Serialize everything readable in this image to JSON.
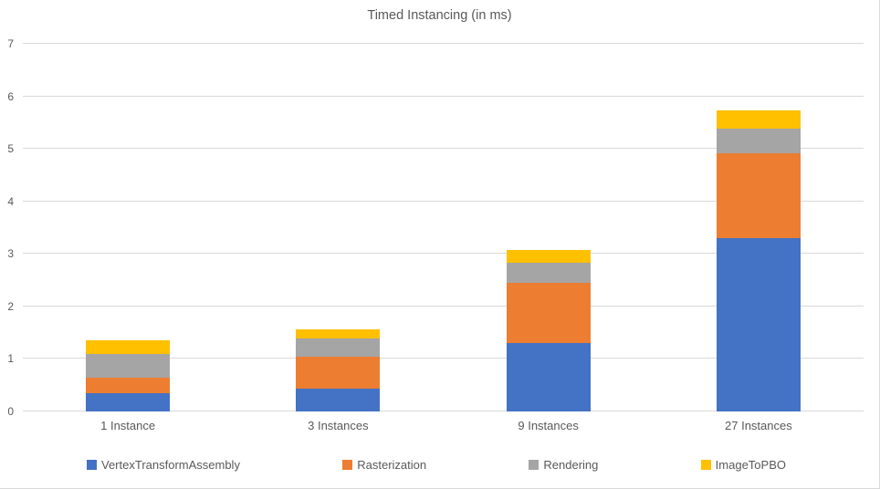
{
  "chart_data": {
    "type": "bar",
    "stacked": true,
    "title": "Timed Instancing (in ms)",
    "categories": [
      "1 Instance",
      "3 Instances",
      "9 Instances",
      "27 Instances"
    ],
    "series": [
      {
        "name": "VertexTransformAssembly",
        "color": "#4472C4",
        "values": [
          0.34,
          0.43,
          1.31,
          3.3
        ]
      },
      {
        "name": "Rasterization",
        "color": "#ED7D31",
        "values": [
          0.3,
          0.61,
          1.14,
          1.62
        ]
      },
      {
        "name": "Rendering",
        "color": "#A5A5A5",
        "values": [
          0.45,
          0.35,
          0.39,
          0.46
        ]
      },
      {
        "name": "ImageToPBO",
        "color": "#FFC000",
        "values": [
          0.26,
          0.18,
          0.24,
          0.35
        ]
      }
    ],
    "stack_totals": [
      1.35,
      1.57,
      3.08,
      5.73
    ],
    "ylim": [
      0,
      7
    ],
    "yticks": [
      0,
      1,
      2,
      3,
      4,
      5,
      6,
      7
    ],
    "grid": true,
    "legend_position": "bottom",
    "colors": {
      "text": "#595959",
      "gridline": "#D9D9D9",
      "background": "#FFFFFF"
    }
  }
}
